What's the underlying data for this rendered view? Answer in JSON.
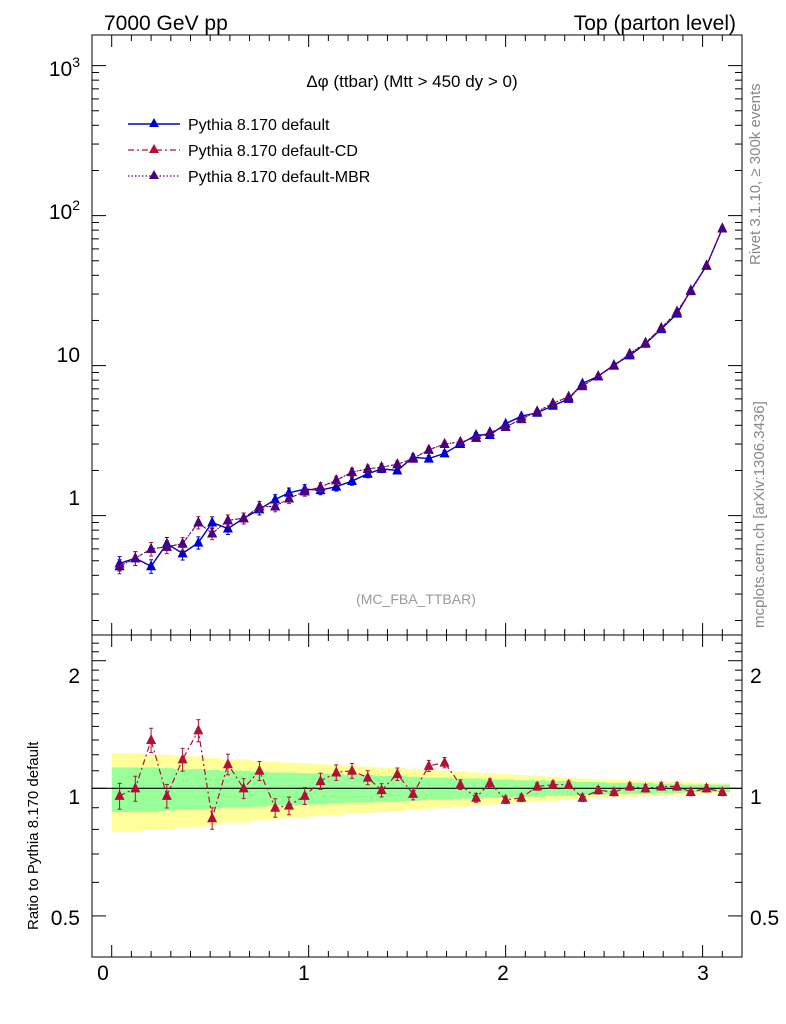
{
  "header": {
    "left": "7000 GeV pp",
    "right": "Top (parton level)"
  },
  "side_labels": {
    "top": "Rivet 3.1.10, ≥ 300k events",
    "bottom": "mcplots.cern.ch [arXiv:1306.3436]"
  },
  "chart_data": {
    "type": "line",
    "title": "Δφ (ttbar) (Mtt > 450 dy > 0)",
    "watermark": "(MC_FBA_TTBAR)",
    "xlabel": "",
    "ylabel": "",
    "xlim": [
      -0.1,
      3.2
    ],
    "ylim": [
      0.16,
      1600
    ],
    "yscale": "log",
    "yticks": [
      "1",
      "10",
      "10^2",
      "10^3"
    ],
    "xticks": [
      "0",
      "1",
      "2",
      "3"
    ],
    "legend_position": "top-left",
    "x": [
      0.04,
      0.12,
      0.2,
      0.28,
      0.36,
      0.44,
      0.51,
      0.59,
      0.67,
      0.75,
      0.83,
      0.9,
      0.98,
      1.06,
      1.14,
      1.22,
      1.3,
      1.37,
      1.45,
      1.53,
      1.61,
      1.69,
      1.77,
      1.85,
      1.92,
      2.0,
      2.08,
      2.16,
      2.24,
      2.32,
      2.39,
      2.47,
      2.55,
      2.63,
      2.71,
      2.79,
      2.87,
      2.94,
      3.02,
      3.1
    ],
    "series": [
      {
        "name": "Pythia 8.170 default",
        "color": "#0000cc",
        "line": "solid",
        "values": [
          0.48,
          0.52,
          0.46,
          0.65,
          0.56,
          0.66,
          0.9,
          0.82,
          0.96,
          1.1,
          1.28,
          1.42,
          1.5,
          1.48,
          1.56,
          1.7,
          1.9,
          2.05,
          2.0,
          2.45,
          2.4,
          2.6,
          3.0,
          3.45,
          3.45,
          4.1,
          4.6,
          4.85,
          5.4,
          6.0,
          7.6,
          8.5,
          10.1,
          11.7,
          14.0,
          17.5,
          22.2,
          31.8,
          46.5,
          82.0
        ]
      },
      {
        "name": "Pythia 8.170 default-CD",
        "color": "#b0103a",
        "line": "dashdot",
        "values": [
          0.46,
          0.52,
          0.6,
          0.62,
          0.65,
          0.9,
          0.76,
          0.93,
          0.96,
          1.15,
          1.15,
          1.3,
          1.45,
          1.55,
          1.72,
          1.95,
          2.05,
          2.1,
          2.2,
          2.4,
          2.75,
          3.0,
          3.1,
          3.3,
          3.6,
          3.9,
          4.4,
          4.95,
          5.6,
          6.2,
          7.3,
          8.5,
          10.0,
          12.0,
          14.2,
          17.8,
          22.9,
          31.4,
          46.3,
          82.0
        ]
      },
      {
        "name": "Pythia 8.170 default-MBR",
        "color": "#4b0082",
        "line": "dotted",
        "values": [
          0.46,
          0.52,
          0.6,
          0.62,
          0.65,
          0.9,
          0.76,
          0.93,
          0.96,
          1.15,
          1.15,
          1.3,
          1.45,
          1.55,
          1.72,
          1.95,
          2.05,
          2.1,
          2.2,
          2.4,
          2.75,
          3.0,
          3.1,
          3.3,
          3.6,
          3.9,
          4.4,
          4.95,
          5.6,
          6.2,
          7.3,
          8.5,
          10.0,
          12.0,
          14.2,
          17.8,
          22.9,
          31.4,
          46.3,
          82.0
        ]
      }
    ],
    "ratio": {
      "ylabel": "Ratio to Pythia 8.170 default",
      "ylim": [
        0.4,
        2.3
      ],
      "yscale": "log",
      "yticks": [
        "0.5",
        "1",
        "2"
      ],
      "reference": 1,
      "values": [
        0.96,
        1.0,
        1.3,
        0.96,
        1.17,
        1.37,
        0.85,
        1.14,
        1.0,
        1.1,
        0.9,
        0.91,
        0.96,
        1.04,
        1.09,
        1.1,
        1.06,
        0.99,
        1.08,
        0.97,
        1.13,
        1.15,
        1.02,
        0.95,
        1.03,
        0.94,
        0.95,
        1.01,
        1.02,
        1.02,
        0.95,
        0.99,
        0.98,
        1.01,
        1.0,
        1.01,
        1.01,
        0.98,
        1.0,
        0.98
      ],
      "band_inner_halfwidth": [
        0.12,
        0.12,
        0.12,
        0.115,
        0.11,
        0.11,
        0.105,
        0.1,
        0.1,
        0.095,
        0.09,
        0.09,
        0.085,
        0.085,
        0.08,
        0.075,
        0.075,
        0.07,
        0.07,
        0.065,
        0.06,
        0.06,
        0.055,
        0.055,
        0.05,
        0.05,
        0.045,
        0.045,
        0.04,
        0.04,
        0.035,
        0.035,
        0.03,
        0.03,
        0.03,
        0.025,
        0.025,
        0.02,
        0.02,
        0.02
      ],
      "band_outer_halfwidth": [
        0.21,
        0.21,
        0.2,
        0.2,
        0.19,
        0.19,
        0.18,
        0.17,
        0.17,
        0.16,
        0.155,
        0.15,
        0.145,
        0.14,
        0.135,
        0.13,
        0.125,
        0.12,
        0.115,
        0.11,
        0.105,
        0.1,
        0.095,
        0.09,
        0.085,
        0.08,
        0.075,
        0.07,
        0.065,
        0.06,
        0.055,
        0.05,
        0.048,
        0.045,
        0.042,
        0.04,
        0.038,
        0.035,
        0.032,
        0.03
      ],
      "band_colors": {
        "inner": "#99ff99",
        "outer": "#ffff99"
      }
    }
  }
}
